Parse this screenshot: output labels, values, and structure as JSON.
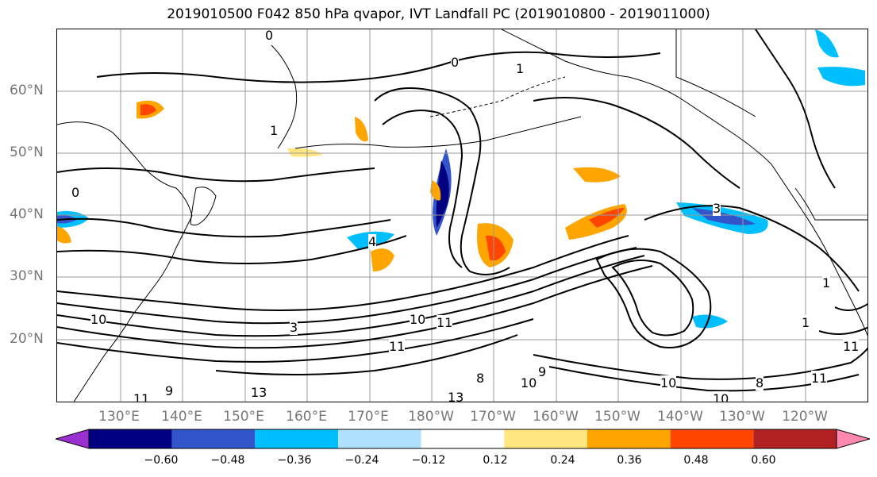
{
  "title": "2019010500 F042 850 hPa qvapor, IVT Landfall PC (2019010800 - 2019011000)",
  "lat_labels": [
    "60°N",
    "50°N",
    "40°N",
    "30°N",
    "20°N"
  ],
  "lon_labels": [
    "130°E",
    "140°E",
    "150°E",
    "160°E",
    "170°E",
    "180°W",
    "170°W",
    "160°W",
    "150°W",
    "140°W",
    "130°W",
    "120°W"
  ],
  "colorbar": {
    "ticks": [
      "−0.60",
      "−0.48",
      "−0.36",
      "−0.24",
      "−0.12",
      "0.12",
      "0.24",
      "0.36",
      "0.48",
      "0.60"
    ],
    "colors": [
      "#9b30d0",
      "#000080",
      "#3355cc",
      "#00bfff",
      "#b0e2ff",
      "#ffffff",
      "#ffe680",
      "#ffa500",
      "#ff4500",
      "#b22222",
      "#ff88b0"
    ]
  },
  "contour_labels": [
    "0",
    "0",
    "1",
    "1",
    "3",
    "3",
    "10",
    "10",
    "11",
    "11",
    "13",
    "13",
    "10",
    "11",
    "8",
    "9",
    "10",
    "11",
    "10",
    "11",
    "8",
    "9",
    "1",
    "1",
    "4",
    "0"
  ],
  "map_colors": {
    "land_outline": "#000000",
    "grid": "#999999",
    "contour": "#000000"
  }
}
